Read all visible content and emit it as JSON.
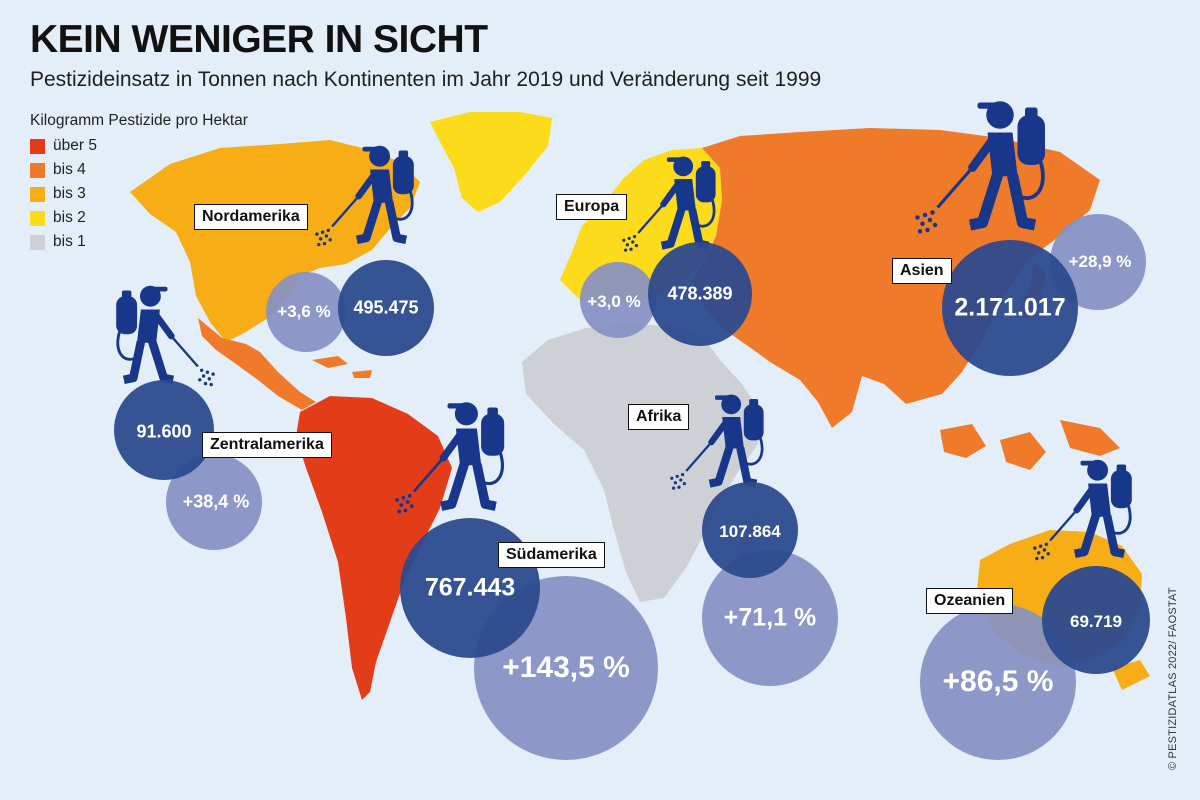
{
  "header": {
    "title": "KEIN WENIGER IN SICHT",
    "subtitle": "Pestizideinsatz in Tonnen nach Kontinenten im Jahr 2019 und Veränderung seit 1999"
  },
  "legend": {
    "title": "Kilogramm Pestizide pro Hektar",
    "items": [
      {
        "label": "über 5",
        "color": "#e23d18"
      },
      {
        "label": "bis 4",
        "color": "#ef7b2a"
      },
      {
        "label": "bis 3",
        "color": "#f6ad16"
      },
      {
        "label": "bis 2",
        "color": "#fbdb1a"
      },
      {
        "label": "bis 1",
        "color": "#cdd0d5"
      }
    ]
  },
  "colors": {
    "ocean": "#e4eef8",
    "tonnage_bubble": "#2c4a8e",
    "change_bubble": "#8590c3",
    "figure": "#18378a"
  },
  "regions": [
    {
      "name": "Nordamerika",
      "tonnes_2019": "495.475",
      "change_since_1999": "+3,6 %"
    },
    {
      "name": "Europa",
      "tonnes_2019": "478.389",
      "change_since_1999": "+3,0 %"
    },
    {
      "name": "Asien",
      "tonnes_2019": "2.171.017",
      "change_since_1999": "+28,9 %"
    },
    {
      "name": "Zentralamerika",
      "tonnes_2019": "91.600",
      "change_since_1999": "+38,4 %"
    },
    {
      "name": "Südamerika",
      "tonnes_2019": "767.443",
      "change_since_1999": "+143,5 %"
    },
    {
      "name": "Afrika",
      "tonnes_2019": "107.864",
      "change_since_1999": "+71,1 %"
    },
    {
      "name": "Ozeanien",
      "tonnes_2019": "69.719",
      "change_since_1999": "+86,5 %"
    }
  ],
  "credit": "© PESTIZIDATLAS 2022/ FAOSTAT",
  "icons": [
    "sprayer-figure-icon"
  ]
}
